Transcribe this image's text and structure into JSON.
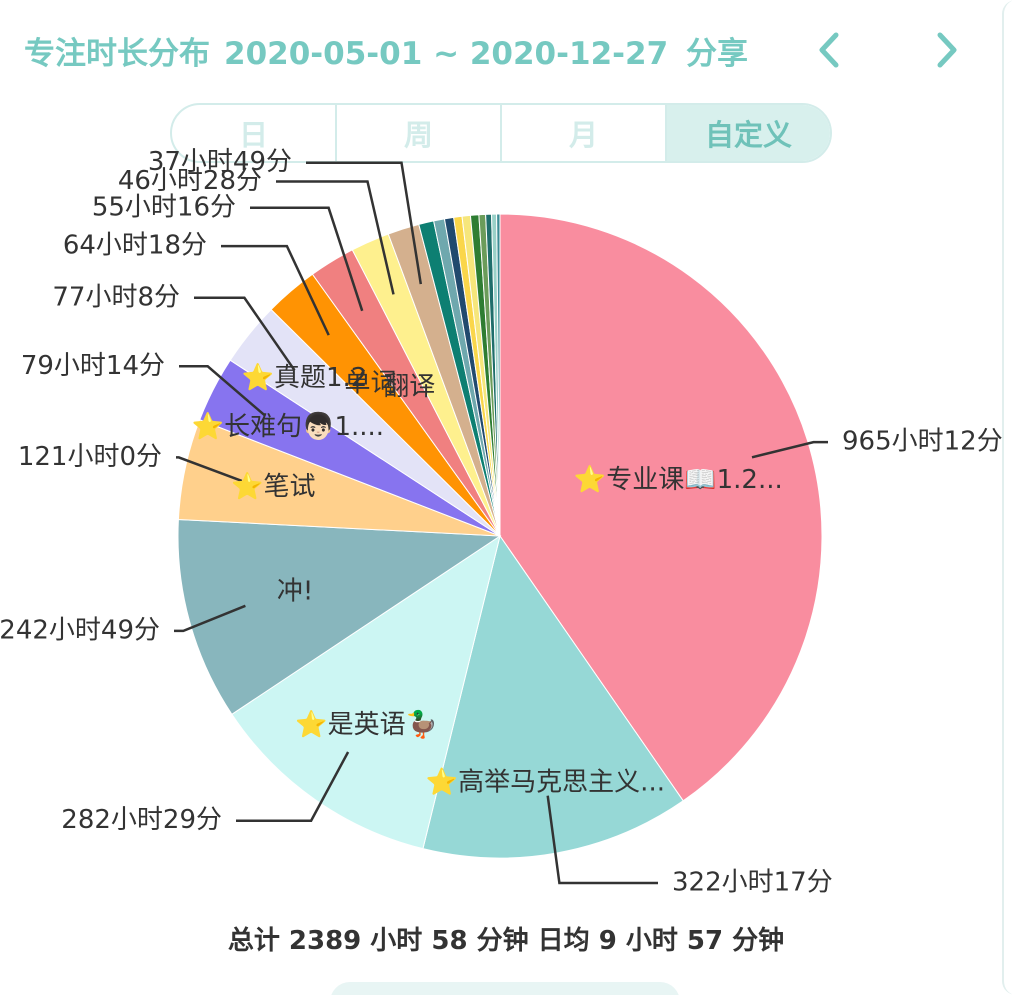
{
  "header": {
    "title": "专注时长分布",
    "date_range": "2020-05-01 ~ 2020-12-27",
    "share_label": "分享"
  },
  "tabs": [
    {
      "label": "日",
      "active": false
    },
    {
      "label": "周",
      "active": false
    },
    {
      "label": "月",
      "active": false
    },
    {
      "label": "自定义",
      "active": true
    }
  ],
  "chart_data": {
    "type": "pie",
    "title": "",
    "start_angle_deg": 0,
    "direction": "clockwise",
    "slices": [
      {
        "label": "⭐专业课📖1.2...",
        "value": 965.2,
        "value_label": "965小时12分",
        "color": "#f98d9f"
      },
      {
        "label": "⭐高举马克思主义...",
        "value": 322.28,
        "value_label": "322小时17分",
        "color": "#96d8d6"
      },
      {
        "label": "⭐是英语🦆",
        "value": 282.48,
        "value_label": "282小时29分",
        "color": "#ccf6f3"
      },
      {
        "label": "冲!",
        "value": 242.82,
        "value_label": "242小时49分",
        "color": "#88b6bd"
      },
      {
        "label": "⭐笔试",
        "value": 121.0,
        "value_label": "121小时0分",
        "color": "#ffd08c"
      },
      {
        "label": "⭐长难句👦🏻1....",
        "value": 79.23,
        "value_label": "79小时14分",
        "color": "#8774ef"
      },
      {
        "label": "⭐真题1.2",
        "value": 77.13,
        "value_label": "77小时8分",
        "color": "#e3e3f7"
      },
      {
        "label": "单词",
        "value": 64.3,
        "value_label": "64小时18分",
        "color": "#ff9303"
      },
      {
        "label": "翻译",
        "value": 55.27,
        "value_label": "55小时16分",
        "color": "#f08080"
      },
      {
        "label": "",
        "value": 46.47,
        "value_label": "46小时28分",
        "color": "#fef08e"
      },
      {
        "label": "",
        "value": 37.82,
        "value_label": "37小时49分",
        "color": "#d4b08e"
      },
      {
        "label": "",
        "value": 18,
        "value_label": "",
        "color": "#0d7f72"
      },
      {
        "label": "",
        "value": 13,
        "value_label": "",
        "color": "#6fa8ae"
      },
      {
        "label": "",
        "value": 11,
        "value_label": "",
        "color": "#214a6e"
      },
      {
        "label": "",
        "value": 10,
        "value_label": "",
        "color": "#fad64a"
      },
      {
        "label": "",
        "value": 10,
        "value_label": "",
        "color": "#f6e67b"
      },
      {
        "label": "",
        "value": 10,
        "value_label": "",
        "color": "#2e7d32"
      },
      {
        "label": "",
        "value": 8,
        "value_label": "",
        "color": "#6b9c5a"
      },
      {
        "label": "",
        "value": 7,
        "value_label": "",
        "color": "#1f6e6b"
      },
      {
        "label": "",
        "value": 6,
        "value_label": "",
        "color": "#9ad1c8"
      },
      {
        "label": "",
        "value": 4,
        "value_label": "",
        "color": "#3d8d95"
      }
    ]
  },
  "summary": {
    "total_text": "总计 2389 小时 58 分钟 日均 9 小时 57 分钟"
  }
}
